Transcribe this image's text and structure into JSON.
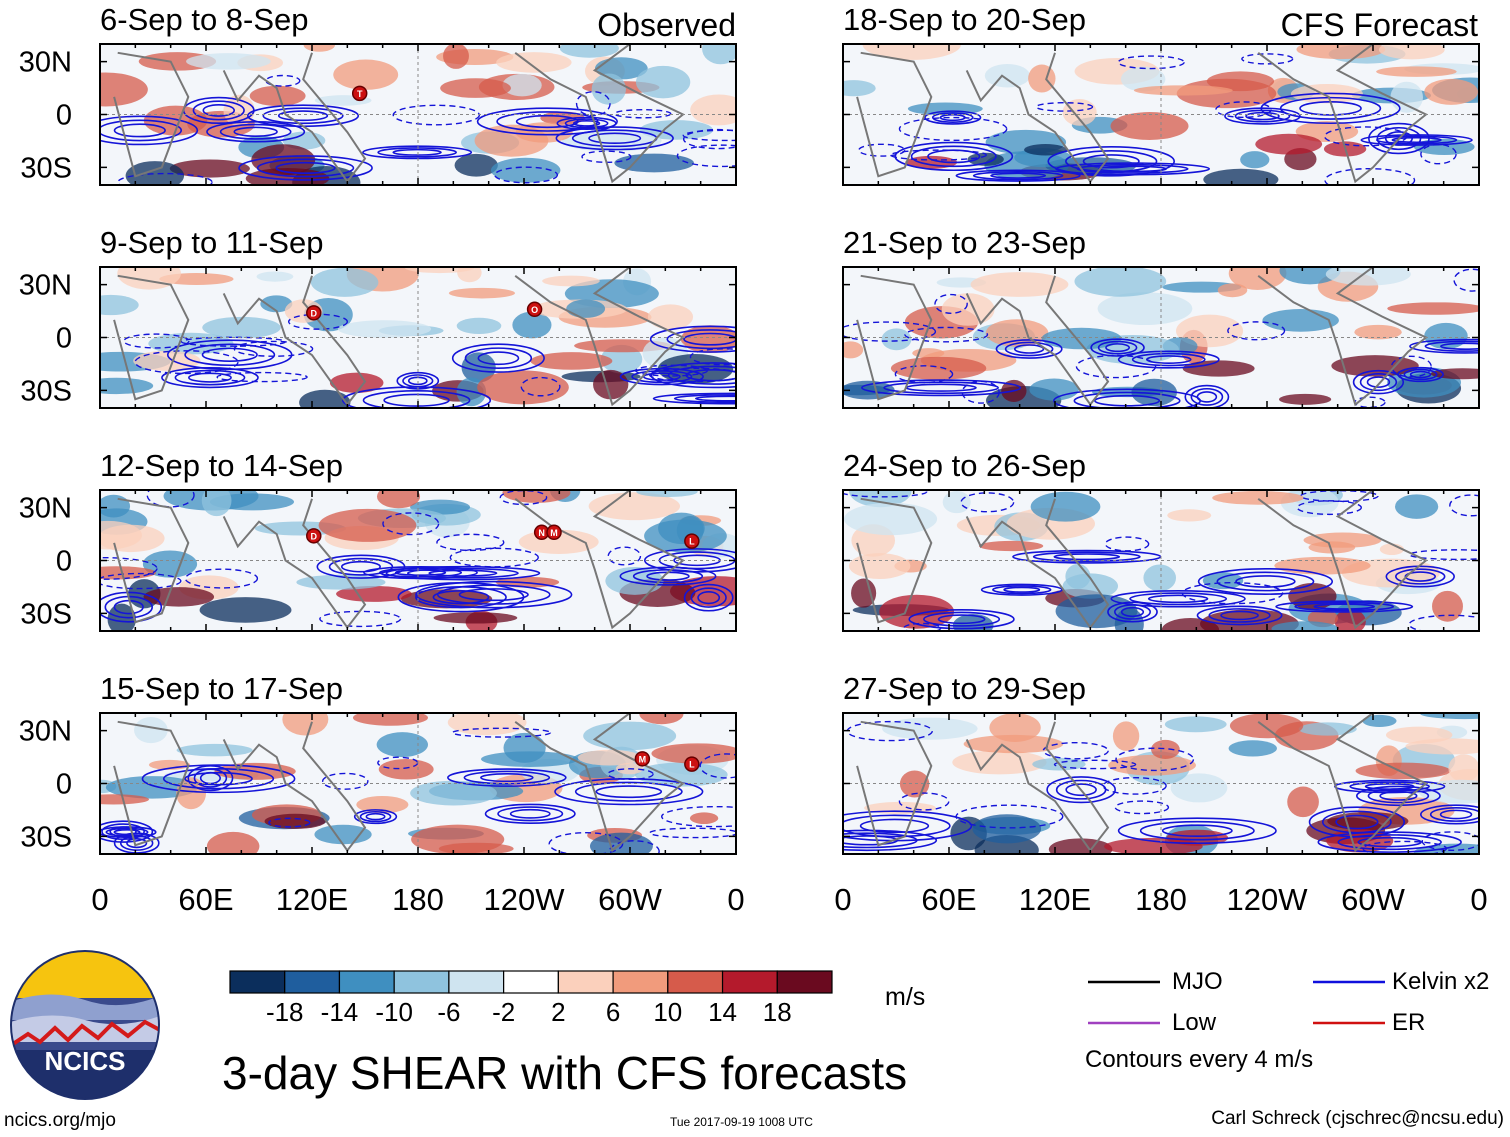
{
  "figure": {
    "title": "3-day SHEAR with CFS forecasts",
    "observed_label": "Observed",
    "forecast_label": "CFS Forecast",
    "footer_left": "ncics.org/mjo",
    "footer_mid": "Tue 2017-09-19 1008 UTC",
    "footer_right": "Carl Schreck (cjschrec@ncsu.edu)",
    "logo_text": "NCICS"
  },
  "legend": {
    "items": [
      {
        "label": "MJO",
        "color": "#000000"
      },
      {
        "label": "Kelvin x2",
        "color": "#1010dd"
      },
      {
        "label": "Low",
        "color": "#a040c0"
      },
      {
        "label": "ER",
        "color": "#d01010"
      }
    ],
    "note": "Contours every 4 m/s"
  },
  "chart_data": {
    "type": "heatmap",
    "variable": "SHEAR",
    "units": "m/s",
    "colorbar": {
      "ticks": [
        "-18",
        "-14",
        "-10",
        "-6",
        "-2",
        "2",
        "6",
        "10",
        "14",
        "18"
      ],
      "colors": [
        "#0b2e5c",
        "#1f5e9e",
        "#3f8fc0",
        "#8fc3de",
        "#cfe4f0",
        "#ffffff",
        "#fbd0bc",
        "#f19b7c",
        "#d65b4b",
        "#b41a2c",
        "#6a0a1f"
      ]
    },
    "x_ticks": [
      "0",
      "60E",
      "120E",
      "180",
      "120W",
      "60W",
      "0"
    ],
    "y_ticks": [
      "30N",
      "0",
      "30S"
    ],
    "panels": {
      "observed": [
        {
          "title": "6-Sep to 8-Sep",
          "storms": [
            {
              "symbol": "T",
              "lon": 147,
              "lat": 12
            }
          ]
        },
        {
          "title": "9-Sep to 11-Sep",
          "storms": [
            {
              "symbol": "D",
              "lon": 121,
              "lat": 14
            },
            {
              "symbol": "O",
              "lon": 246,
              "lat": 16
            }
          ]
        },
        {
          "title": "12-Sep to 14-Sep",
          "storms": [
            {
              "symbol": "D",
              "lon": 121,
              "lat": 14
            },
            {
              "symbol": "N",
              "lon": 250,
              "lat": 16
            },
            {
              "symbol": "M",
              "lon": 257,
              "lat": 16
            },
            {
              "symbol": "L",
              "lon": 335,
              "lat": 11
            }
          ]
        },
        {
          "title": "15-Sep to 17-Sep",
          "storms": [
            {
              "symbol": "M",
              "lon": 307,
              "lat": 14
            },
            {
              "symbol": "L",
              "lon": 335,
              "lat": 11
            }
          ]
        }
      ],
      "forecast": [
        {
          "title": "18-Sep to 20-Sep",
          "storms": []
        },
        {
          "title": "21-Sep to 23-Sep",
          "storms": []
        },
        {
          "title": "24-Sep to 26-Sep",
          "storms": []
        },
        {
          "title": "27-Sep to 29-Sep",
          "storms": []
        }
      ]
    }
  }
}
